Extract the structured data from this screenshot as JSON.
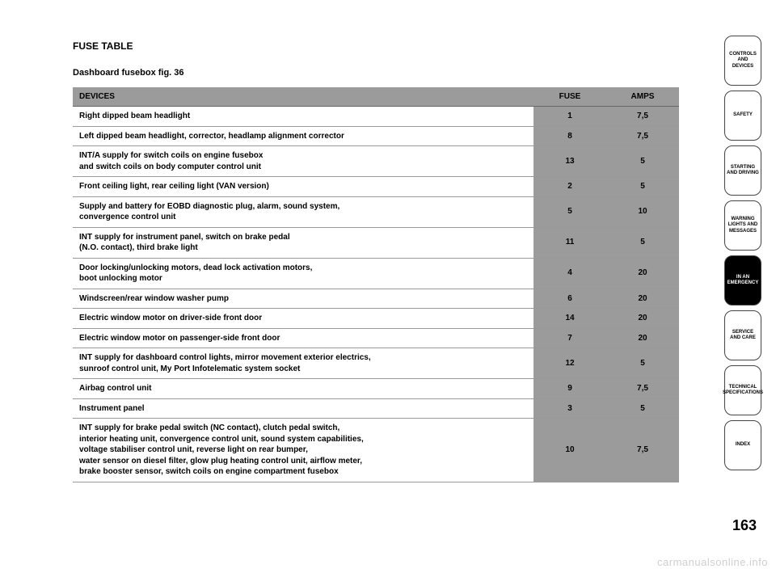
{
  "title": "FUSE TABLE",
  "subtitle": "Dashboard fusebox fig. 36",
  "table": {
    "headers": {
      "device": "DEVICES",
      "fuse": "FUSE",
      "amps": "AMPS"
    },
    "col_widths": {
      "device": "auto",
      "fuse": "90px",
      "amps": "90px"
    },
    "header_bg": "#9b9b9b",
    "value_bg": "#9b9b9b",
    "border_color": "#999999",
    "rows": [
      {
        "device": "Right dipped beam headlight",
        "fuse": "1",
        "amps": "7,5"
      },
      {
        "device": "Left dipped beam headlight, corrector, headlamp alignment corrector",
        "fuse": "8",
        "amps": "7,5"
      },
      {
        "device": "INT/A supply for switch coils on engine fusebox\nand switch coils on body computer control unit",
        "fuse": "13",
        "amps": "5"
      },
      {
        "device": "Front ceiling light, rear ceiling light (VAN version)",
        "fuse": "2",
        "amps": "5"
      },
      {
        "device": "Supply and battery for EOBD diagnostic plug, alarm, sound system,\nconvergence control unit",
        "fuse": "5",
        "amps": "10"
      },
      {
        "device": "INT supply for instrument panel, switch on brake pedal\n(N.O. contact), third brake light",
        "fuse": "11",
        "amps": "5"
      },
      {
        "device": "Door locking/unlocking motors, dead lock activation motors,\nboot unlocking motor",
        "fuse": "4",
        "amps": "20"
      },
      {
        "device": "Windscreen/rear window washer pump",
        "fuse": "6",
        "amps": "20"
      },
      {
        "device": "Electric window motor on driver-side front door",
        "fuse": "14",
        "amps": "20"
      },
      {
        "device": "Electric window motor on passenger-side front door",
        "fuse": "7",
        "amps": "20"
      },
      {
        "device": "INT supply for dashboard control lights, mirror movement exterior electrics,\nsunroof control unit, My Port Infotelematic system socket",
        "fuse": "12",
        "amps": "5"
      },
      {
        "device": "Airbag control unit",
        "fuse": "9",
        "amps": "7,5"
      },
      {
        "device": "Instrument panel",
        "fuse": "3",
        "amps": "5"
      },
      {
        "device": "INT supply for brake pedal switch (NC contact), clutch pedal switch,\ninterior heating unit, convergence control unit, sound system capabilities,\nvoltage stabiliser control unit, reverse light on rear bumper,\nwater sensor on diesel filter, glow plug heating control unit, airflow meter,\nbrake booster sensor, switch coils on engine compartment fusebox",
        "fuse": "10",
        "amps": "7,5"
      }
    ]
  },
  "tabs": [
    {
      "label": "CONTROLS\nAND DEVICES",
      "active": false
    },
    {
      "label": "SAFETY",
      "active": false
    },
    {
      "label": "STARTING\nAND DRIVING",
      "active": false
    },
    {
      "label": "WARNING\nLIGHTS AND\nMESSAGES",
      "active": false
    },
    {
      "label": "IN AN\nEMERGENCY",
      "active": true
    },
    {
      "label": "SERVICE\nAND CARE",
      "active": false
    },
    {
      "label": "TECHNICAL\nSPECIFICATIONS",
      "active": false
    },
    {
      "label": "INDEX",
      "active": false
    }
  ],
  "page_number": "163",
  "watermark": "carmanualsonline.info",
  "colors": {
    "background": "#ffffff",
    "text": "#000000",
    "tab_border": "#444444",
    "tab_active_bg": "#000000",
    "tab_active_text": "#ffffff",
    "watermark": "#cfcfcf"
  }
}
